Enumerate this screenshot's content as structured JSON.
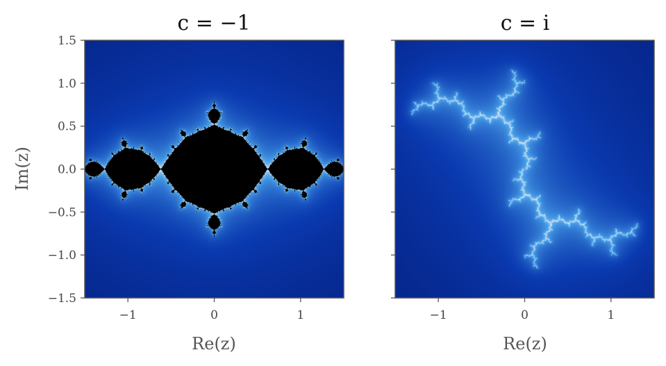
{
  "chart_data": [
    {
      "type": "heatmap",
      "title": "c = −1",
      "xlabel": "Re(z)",
      "ylabel": "Im(z)",
      "xlim": [
        -1.5,
        1.5
      ],
      "ylim": [
        -1.5,
        1.5
      ],
      "xticks": [
        -1,
        0,
        1
      ],
      "xtick_labels": [
        "−1",
        "0",
        "1"
      ],
      "yticks": [
        1.5,
        1.0,
        0.5,
        0.0,
        -0.5,
        -1.0,
        -1.5
      ],
      "ytick_labels": [
        "1.5",
        "1.0",
        "0.5",
        "0.0",
        "−0.5",
        "−1.0",
        "−1.5"
      ],
      "c": [
        -1,
        0
      ],
      "colormap": [
        "#000a5a",
        "#0a3ab0",
        "#4aa0e8",
        "#ffffff",
        "#f2a000",
        "#6a2800"
      ],
      "interior_color": "#000000",
      "grid": false
    },
    {
      "type": "heatmap",
      "title": "c = i",
      "xlabel": "Re(z)",
      "ylabel": "",
      "xlim": [
        -1.5,
        1.5
      ],
      "ylim": [
        -1.5,
        1.5
      ],
      "xticks": [
        -1,
        0,
        1
      ],
      "xtick_labels": [
        "−1",
        "0",
        "1"
      ],
      "yticks": [
        1.5,
        1.0,
        0.5,
        0.0,
        -0.5,
        -1.0,
        -1.5
      ],
      "ytick_labels": [],
      "c": [
        0,
        1
      ],
      "colormap": [
        "#000a5a",
        "#0a3ab0",
        "#4aa0e8",
        "#ffffff",
        "#f2a000",
        "#6a2800"
      ],
      "interior_color": "#000000",
      "grid": false
    }
  ]
}
